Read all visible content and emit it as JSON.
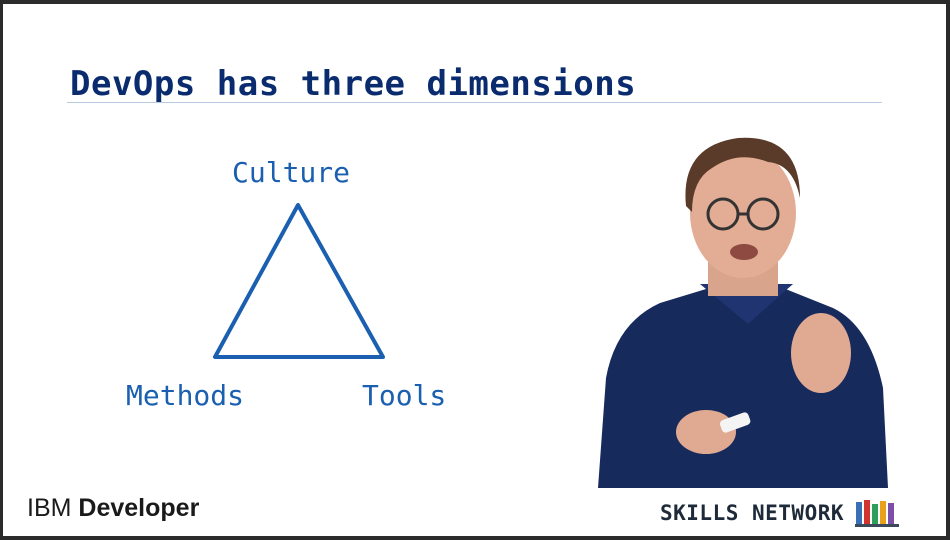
{
  "slide": {
    "title": "DevOps has three dimensions",
    "dimensions": {
      "top": "Culture",
      "left": "Methods",
      "right": "Tools"
    }
  },
  "branding": {
    "left_prefix": "IBM",
    "left_strong": "Developer",
    "right": "SKILLS NETWORK",
    "right_icon": "books-icon"
  },
  "colors": {
    "title": "#0a2c6e",
    "accent": "#1b5fb0",
    "sweater": "#172a5c"
  }
}
